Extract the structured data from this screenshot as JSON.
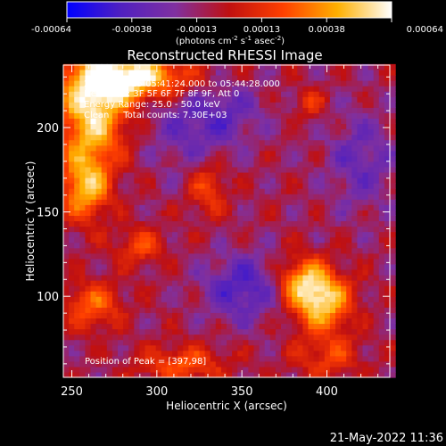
{
  "chart_data": {
    "type": "heatmap",
    "title": "Reconstructed RHESSI Image",
    "xlabel": "Heliocentric X (arcsec)",
    "ylabel": "Heliocentric Y (arcsec)",
    "xlim": [
      245,
      437
    ],
    "ylim": [
      52,
      237
    ],
    "x_ticks": [
      "250",
      "300",
      "350",
      "400"
    ],
    "y_ticks": [
      "100",
      "150",
      "200"
    ],
    "colorbar": {
      "range": [
        -0.00064,
        0.00064
      ],
      "ticks": [
        "-0.00064",
        "-0.00038",
        "-0.00013",
        "0.00013",
        "0.00038",
        "0.00064"
      ],
      "label": "(photons cm",
      "label_sup1": "-2",
      "label_mid1": " s",
      "label_sup2": "-1",
      "label_mid2": " asec",
      "label_sup3": "-2",
      "label_end": ")",
      "colors": [
        "#0000ff",
        "#5020c0",
        "#8030a0",
        "#c01010",
        "#ff4000",
        "#ffb000",
        "#ffffff"
      ]
    },
    "annotations": {
      "time": "24-May-2015 05:41:24.000 to 05:44:28.000",
      "detectors": "Detectors: 3F 5F 6F 7F 8F 9F, Att 0",
      "energy": "Energy Range: 25.0 - 50.0 keV",
      "clean": "Clean     Total counts: 7.30E+03",
      "peak": "Position of Peak = [397,98]"
    },
    "peak": {
      "x": 397,
      "y": 98
    },
    "sources": [
      {
        "x": 262,
        "y": 210,
        "amp": 1.0,
        "sx": 14,
        "sy": 22
      },
      {
        "x": 278,
        "y": 230,
        "amp": 0.8,
        "sx": 18,
        "sy": 10
      },
      {
        "x": 258,
        "y": 165,
        "amp": 0.8,
        "sx": 10,
        "sy": 14
      },
      {
        "x": 300,
        "y": 230,
        "amp": 0.55,
        "sx": 20,
        "sy": 8
      },
      {
        "x": 397,
        "y": 98,
        "amp": 1.0,
        "sx": 12,
        "sy": 12
      },
      {
        "x": 385,
        "y": 110,
        "amp": 0.6,
        "sx": 10,
        "sy": 10
      },
      {
        "x": 262,
        "y": 95,
        "amp": 0.55,
        "sx": 12,
        "sy": 10
      },
      {
        "x": 290,
        "y": 130,
        "amp": 0.45,
        "sx": 10,
        "sy": 8
      },
      {
        "x": 330,
        "y": 165,
        "amp": 0.45,
        "sx": 8,
        "sy": 12
      },
      {
        "x": 315,
        "y": 60,
        "amp": 0.5,
        "sx": 18,
        "sy": 8
      },
      {
        "x": 400,
        "y": 65,
        "amp": 0.4,
        "sx": 14,
        "sy": 10
      },
      {
        "x": 390,
        "y": 215,
        "amp": 0.35,
        "sx": 6,
        "sy": 6
      },
      {
        "x": 350,
        "y": 105,
        "amp": -0.5,
        "sx": 16,
        "sy": 14
      },
      {
        "x": 320,
        "y": 200,
        "amp": -0.35,
        "sx": 18,
        "sy": 18
      },
      {
        "x": 420,
        "y": 180,
        "amp": -0.35,
        "sx": 14,
        "sy": 20
      },
      {
        "x": 345,
        "y": 210,
        "amp": -0.25,
        "sx": 14,
        "sy": 12
      }
    ]
  },
  "footer": {
    "date": "21-May-2022 11:36"
  }
}
